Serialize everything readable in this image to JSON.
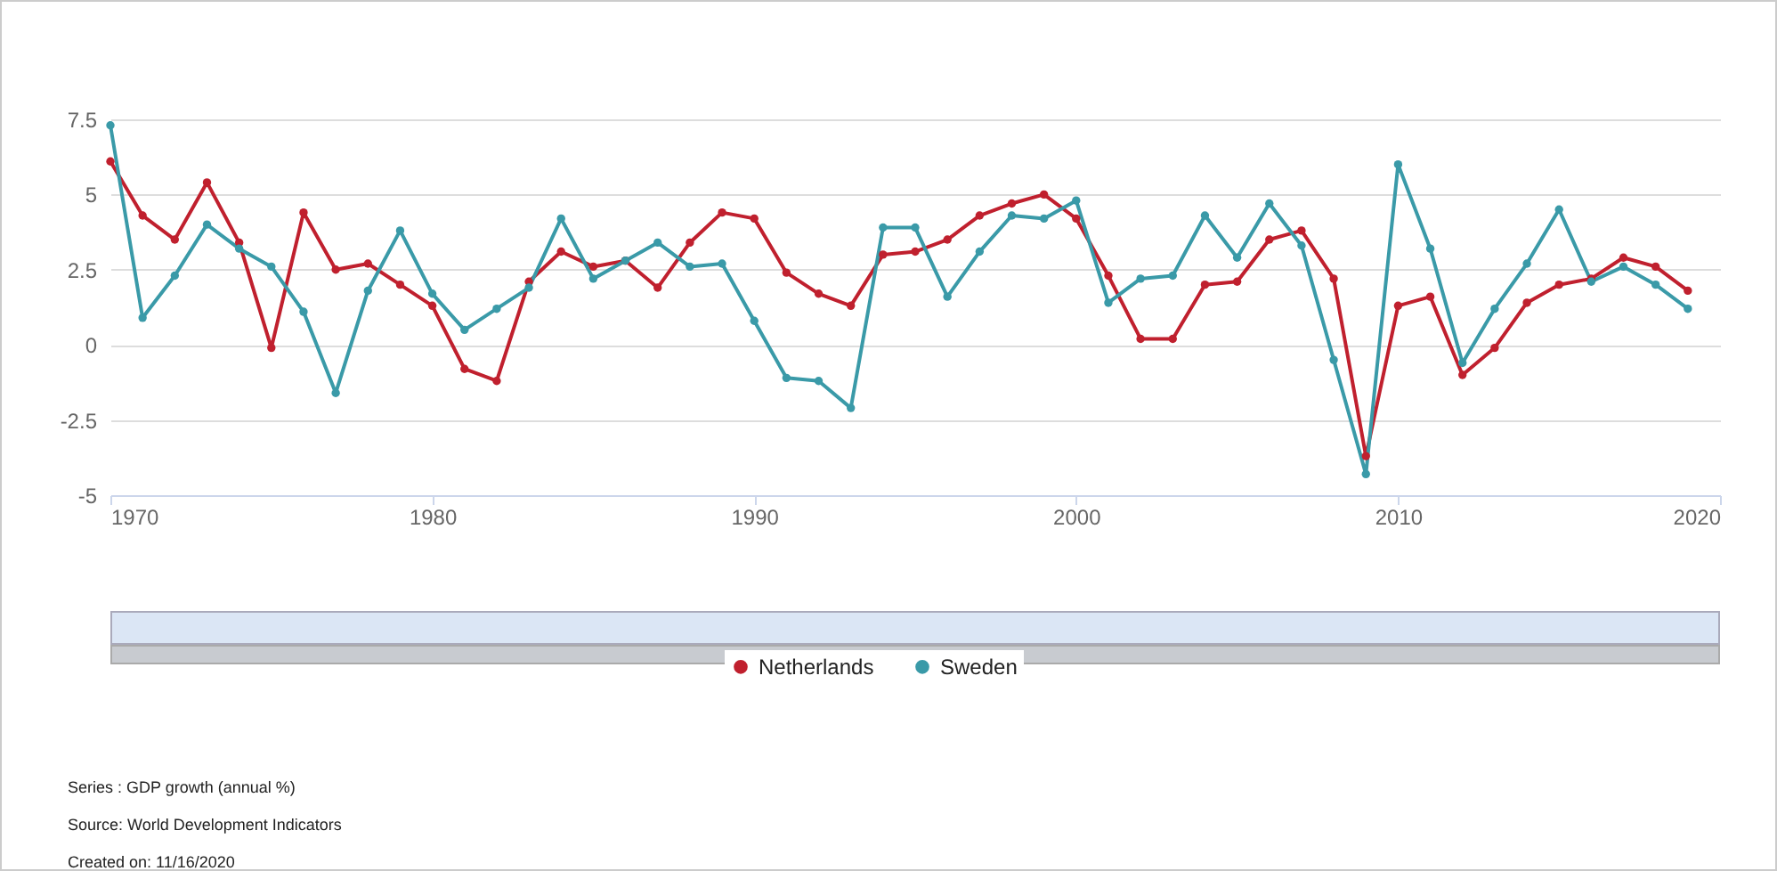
{
  "chart_data": {
    "type": "line",
    "x": [
      1970,
      1971,
      1972,
      1973,
      1974,
      1975,
      1976,
      1977,
      1978,
      1979,
      1980,
      1981,
      1982,
      1983,
      1984,
      1985,
      1986,
      1987,
      1988,
      1989,
      1990,
      1991,
      1992,
      1993,
      1994,
      1995,
      1996,
      1997,
      1998,
      1999,
      2000,
      2001,
      2002,
      2003,
      2004,
      2005,
      2006,
      2007,
      2008,
      2009,
      2010,
      2011,
      2012,
      2013,
      2014,
      2015,
      2016,
      2017,
      2018,
      2019
    ],
    "series": [
      {
        "name": "Netherlands",
        "color": "#c0202e",
        "values": [
          6.1,
          4.3,
          3.5,
          5.4,
          3.4,
          -0.1,
          4.4,
          2.5,
          2.7,
          2.0,
          1.3,
          -0.8,
          -1.2,
          2.1,
          3.1,
          2.6,
          2.8,
          1.9,
          3.4,
          4.4,
          4.2,
          2.4,
          1.7,
          1.3,
          3.0,
          3.1,
          3.5,
          4.3,
          4.7,
          5.0,
          4.2,
          2.3,
          0.2,
          0.2,
          2.0,
          2.1,
          3.5,
          3.8,
          2.2,
          -3.7,
          1.3,
          1.6,
          -1.0,
          -0.1,
          1.4,
          2.0,
          2.2,
          2.9,
          2.6,
          1.8
        ]
      },
      {
        "name": "Sweden",
        "color": "#3a9aa8",
        "values": [
          7.3,
          0.9,
          2.3,
          4.0,
          3.2,
          2.6,
          1.1,
          -1.6,
          1.8,
          3.8,
          1.7,
          0.5,
          1.2,
          1.9,
          4.2,
          2.2,
          2.8,
          3.4,
          2.6,
          2.7,
          0.8,
          -1.1,
          -1.2,
          -2.1,
          3.9,
          3.9,
          1.6,
          3.1,
          4.3,
          4.2,
          4.8,
          1.4,
          2.2,
          2.3,
          4.3,
          2.9,
          4.7,
          3.3,
          -0.5,
          -4.3,
          6.0,
          3.2,
          -0.6,
          1.2,
          2.7,
          4.5,
          2.1,
          2.6,
          2.0,
          1.2
        ]
      }
    ],
    "xlim": [
      1970,
      2020
    ],
    "xticks": [
      1970,
      1980,
      1990,
      2000,
      2010,
      2020
    ],
    "ylim": [
      -5,
      7.5
    ],
    "yticks": [
      {
        "value": -5,
        "label": "-5"
      },
      {
        "value": -2.5,
        "label": "-2.5"
      },
      0,
      2.5,
      5,
      7.5
    ],
    "grid": "y",
    "legend": "bottom",
    "marker": "circle",
    "line_style": "solid",
    "annotations": [
      "Series : GDP growth (annual %)",
      "Source: World Development Indicators",
      "Created on: 11/16/2020"
    ]
  }
}
